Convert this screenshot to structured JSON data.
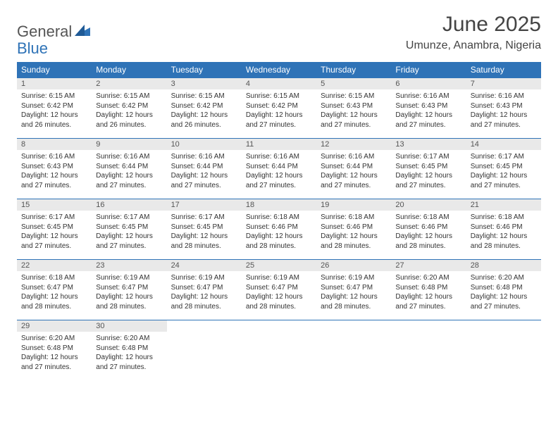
{
  "brand": {
    "general": "General",
    "blue": "Blue"
  },
  "header": {
    "month": "June 2025",
    "location": "Umunze, Anambra, Nigeria"
  },
  "colors": {
    "accent": "#2f73b7",
    "header_row_bg": "#2f73b7",
    "header_row_text": "#ffffff",
    "daynum_bg": "#e9e9e9",
    "text": "#333333"
  },
  "weekdays": [
    "Sunday",
    "Monday",
    "Tuesday",
    "Wednesday",
    "Thursday",
    "Friday",
    "Saturday"
  ],
  "weeks": [
    [
      {
        "n": "1",
        "sr": "Sunrise: 6:15 AM",
        "ss": "Sunset: 6:42 PM",
        "d1": "Daylight: 12 hours",
        "d2": "and 26 minutes."
      },
      {
        "n": "2",
        "sr": "Sunrise: 6:15 AM",
        "ss": "Sunset: 6:42 PM",
        "d1": "Daylight: 12 hours",
        "d2": "and 26 minutes."
      },
      {
        "n": "3",
        "sr": "Sunrise: 6:15 AM",
        "ss": "Sunset: 6:42 PM",
        "d1": "Daylight: 12 hours",
        "d2": "and 26 minutes."
      },
      {
        "n": "4",
        "sr": "Sunrise: 6:15 AM",
        "ss": "Sunset: 6:42 PM",
        "d1": "Daylight: 12 hours",
        "d2": "and 27 minutes."
      },
      {
        "n": "5",
        "sr": "Sunrise: 6:15 AM",
        "ss": "Sunset: 6:43 PM",
        "d1": "Daylight: 12 hours",
        "d2": "and 27 minutes."
      },
      {
        "n": "6",
        "sr": "Sunrise: 6:16 AM",
        "ss": "Sunset: 6:43 PM",
        "d1": "Daylight: 12 hours",
        "d2": "and 27 minutes."
      },
      {
        "n": "7",
        "sr": "Sunrise: 6:16 AM",
        "ss": "Sunset: 6:43 PM",
        "d1": "Daylight: 12 hours",
        "d2": "and 27 minutes."
      }
    ],
    [
      {
        "n": "8",
        "sr": "Sunrise: 6:16 AM",
        "ss": "Sunset: 6:43 PM",
        "d1": "Daylight: 12 hours",
        "d2": "and 27 minutes."
      },
      {
        "n": "9",
        "sr": "Sunrise: 6:16 AM",
        "ss": "Sunset: 6:44 PM",
        "d1": "Daylight: 12 hours",
        "d2": "and 27 minutes."
      },
      {
        "n": "10",
        "sr": "Sunrise: 6:16 AM",
        "ss": "Sunset: 6:44 PM",
        "d1": "Daylight: 12 hours",
        "d2": "and 27 minutes."
      },
      {
        "n": "11",
        "sr": "Sunrise: 6:16 AM",
        "ss": "Sunset: 6:44 PM",
        "d1": "Daylight: 12 hours",
        "d2": "and 27 minutes."
      },
      {
        "n": "12",
        "sr": "Sunrise: 6:16 AM",
        "ss": "Sunset: 6:44 PM",
        "d1": "Daylight: 12 hours",
        "d2": "and 27 minutes."
      },
      {
        "n": "13",
        "sr": "Sunrise: 6:17 AM",
        "ss": "Sunset: 6:45 PM",
        "d1": "Daylight: 12 hours",
        "d2": "and 27 minutes."
      },
      {
        "n": "14",
        "sr": "Sunrise: 6:17 AM",
        "ss": "Sunset: 6:45 PM",
        "d1": "Daylight: 12 hours",
        "d2": "and 27 minutes."
      }
    ],
    [
      {
        "n": "15",
        "sr": "Sunrise: 6:17 AM",
        "ss": "Sunset: 6:45 PM",
        "d1": "Daylight: 12 hours",
        "d2": "and 27 minutes."
      },
      {
        "n": "16",
        "sr": "Sunrise: 6:17 AM",
        "ss": "Sunset: 6:45 PM",
        "d1": "Daylight: 12 hours",
        "d2": "and 27 minutes."
      },
      {
        "n": "17",
        "sr": "Sunrise: 6:17 AM",
        "ss": "Sunset: 6:45 PM",
        "d1": "Daylight: 12 hours",
        "d2": "and 28 minutes."
      },
      {
        "n": "18",
        "sr": "Sunrise: 6:18 AM",
        "ss": "Sunset: 6:46 PM",
        "d1": "Daylight: 12 hours",
        "d2": "and 28 minutes."
      },
      {
        "n": "19",
        "sr": "Sunrise: 6:18 AM",
        "ss": "Sunset: 6:46 PM",
        "d1": "Daylight: 12 hours",
        "d2": "and 28 minutes."
      },
      {
        "n": "20",
        "sr": "Sunrise: 6:18 AM",
        "ss": "Sunset: 6:46 PM",
        "d1": "Daylight: 12 hours",
        "d2": "and 28 minutes."
      },
      {
        "n": "21",
        "sr": "Sunrise: 6:18 AM",
        "ss": "Sunset: 6:46 PM",
        "d1": "Daylight: 12 hours",
        "d2": "and 28 minutes."
      }
    ],
    [
      {
        "n": "22",
        "sr": "Sunrise: 6:18 AM",
        "ss": "Sunset: 6:47 PM",
        "d1": "Daylight: 12 hours",
        "d2": "and 28 minutes."
      },
      {
        "n": "23",
        "sr": "Sunrise: 6:19 AM",
        "ss": "Sunset: 6:47 PM",
        "d1": "Daylight: 12 hours",
        "d2": "and 28 minutes."
      },
      {
        "n": "24",
        "sr": "Sunrise: 6:19 AM",
        "ss": "Sunset: 6:47 PM",
        "d1": "Daylight: 12 hours",
        "d2": "and 28 minutes."
      },
      {
        "n": "25",
        "sr": "Sunrise: 6:19 AM",
        "ss": "Sunset: 6:47 PM",
        "d1": "Daylight: 12 hours",
        "d2": "and 28 minutes."
      },
      {
        "n": "26",
        "sr": "Sunrise: 6:19 AM",
        "ss": "Sunset: 6:47 PM",
        "d1": "Daylight: 12 hours",
        "d2": "and 28 minutes."
      },
      {
        "n": "27",
        "sr": "Sunrise: 6:20 AM",
        "ss": "Sunset: 6:48 PM",
        "d1": "Daylight: 12 hours",
        "d2": "and 27 minutes."
      },
      {
        "n": "28",
        "sr": "Sunrise: 6:20 AM",
        "ss": "Sunset: 6:48 PM",
        "d1": "Daylight: 12 hours",
        "d2": "and 27 minutes."
      }
    ],
    [
      {
        "n": "29",
        "sr": "Sunrise: 6:20 AM",
        "ss": "Sunset: 6:48 PM",
        "d1": "Daylight: 12 hours",
        "d2": "and 27 minutes."
      },
      {
        "n": "30",
        "sr": "Sunrise: 6:20 AM",
        "ss": "Sunset: 6:48 PM",
        "d1": "Daylight: 12 hours",
        "d2": "and 27 minutes."
      },
      {
        "empty": true
      },
      {
        "empty": true
      },
      {
        "empty": true
      },
      {
        "empty": true
      },
      {
        "empty": true
      }
    ]
  ]
}
